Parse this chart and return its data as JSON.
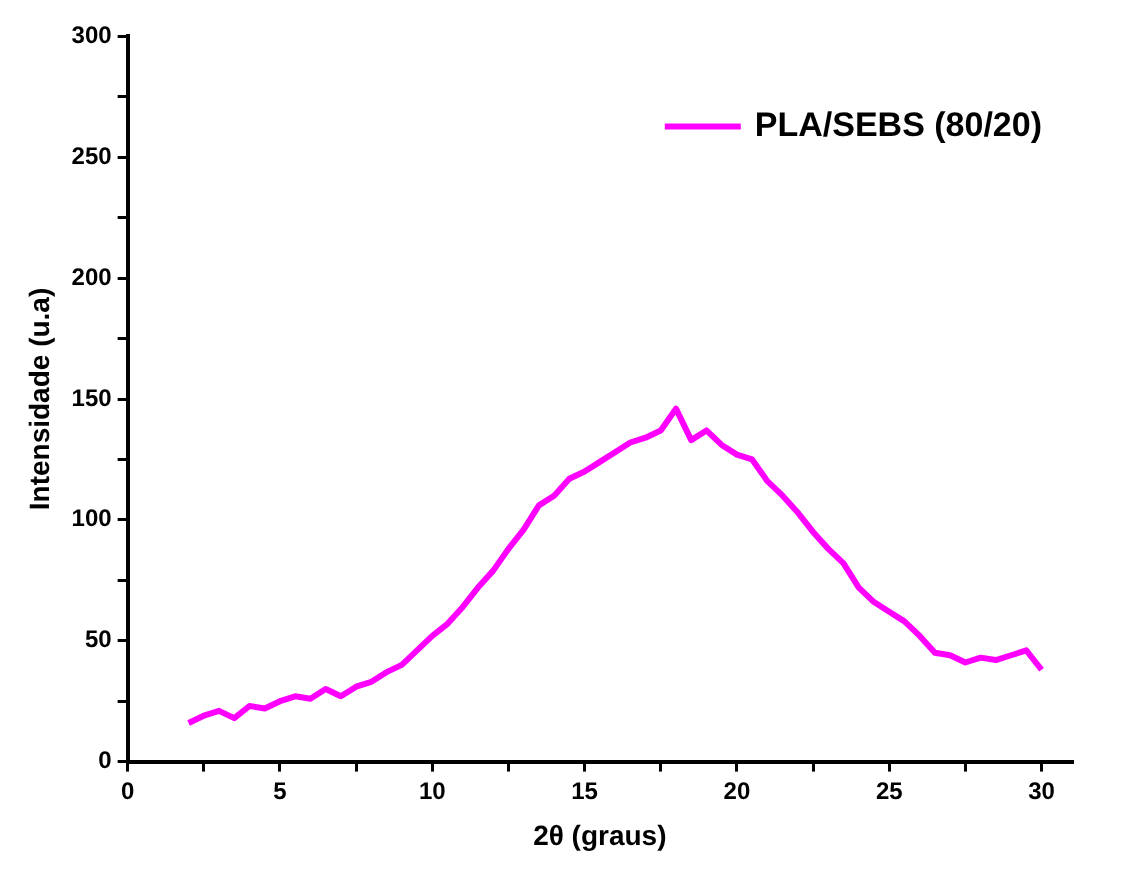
{
  "chart_data": {
    "type": "line",
    "xlabel": "2θ (graus)",
    "ylabel": "Intensidade (u.a)",
    "xlim": [
      0,
      31
    ],
    "xticks": [
      0,
      {
        "value": 2.5,
        "label": null
      },
      5,
      {
        "value": 7.5,
        "label": null
      },
      10,
      {
        "value": 12.5,
        "label": null
      },
      15,
      {
        "value": 17.5,
        "label": null
      },
      20,
      {
        "value": 22.5,
        "label": null
      },
      25,
      {
        "value": 27.5,
        "label": null
      },
      30
    ],
    "ylim": [
      0,
      300
    ],
    "yticks": [
      0,
      {
        "value": 25,
        "label": null
      },
      50,
      {
        "value": 75,
        "label": null
      },
      100,
      {
        "value": 125,
        "label": null
      },
      150,
      {
        "value": 175,
        "label": null
      },
      200,
      {
        "value": 225,
        "label": null
      },
      250,
      {
        "value": 275,
        "label": null
      },
      300
    ],
    "grid": false,
    "legend": "top right",
    "marker": "none",
    "line_style": "solid",
    "x": [
      2,
      2.5,
      3,
      3.5,
      4,
      4.5,
      5,
      5.5,
      6,
      6.5,
      7,
      7.5,
      8,
      8.5,
      9,
      9.5,
      10,
      10.5,
      11,
      11.5,
      12,
      12.5,
      13,
      13.5,
      14,
      14.5,
      15,
      15.5,
      16,
      16.5,
      17,
      17.5,
      18,
      18.5,
      19,
      19.5,
      20,
      20.5,
      21,
      21.5,
      22,
      22.5,
      23,
      23.5,
      24,
      24.5,
      25,
      25.5,
      26,
      26.5,
      27,
      27.5,
      28,
      28.5,
      29,
      29.5,
      30
    ],
    "series": [
      {
        "name": "PLA/SEBS (80/20)",
        "color": "#ff00ff",
        "values": [
          16,
          19,
          21,
          18,
          23,
          22,
          25,
          27,
          26,
          30,
          27,
          31,
          33,
          37,
          40,
          46,
          52,
          57,
          64,
          72,
          79,
          88,
          96,
          106,
          110,
          117,
          120,
          124,
          128,
          132,
          134,
          137,
          146,
          133,
          137,
          131,
          127,
          125,
          116,
          110,
          103,
          95,
          88,
          82,
          72,
          66,
          62,
          58,
          52,
          45,
          44,
          41,
          43,
          42,
          44,
          46,
          38
        ]
      }
    ]
  }
}
